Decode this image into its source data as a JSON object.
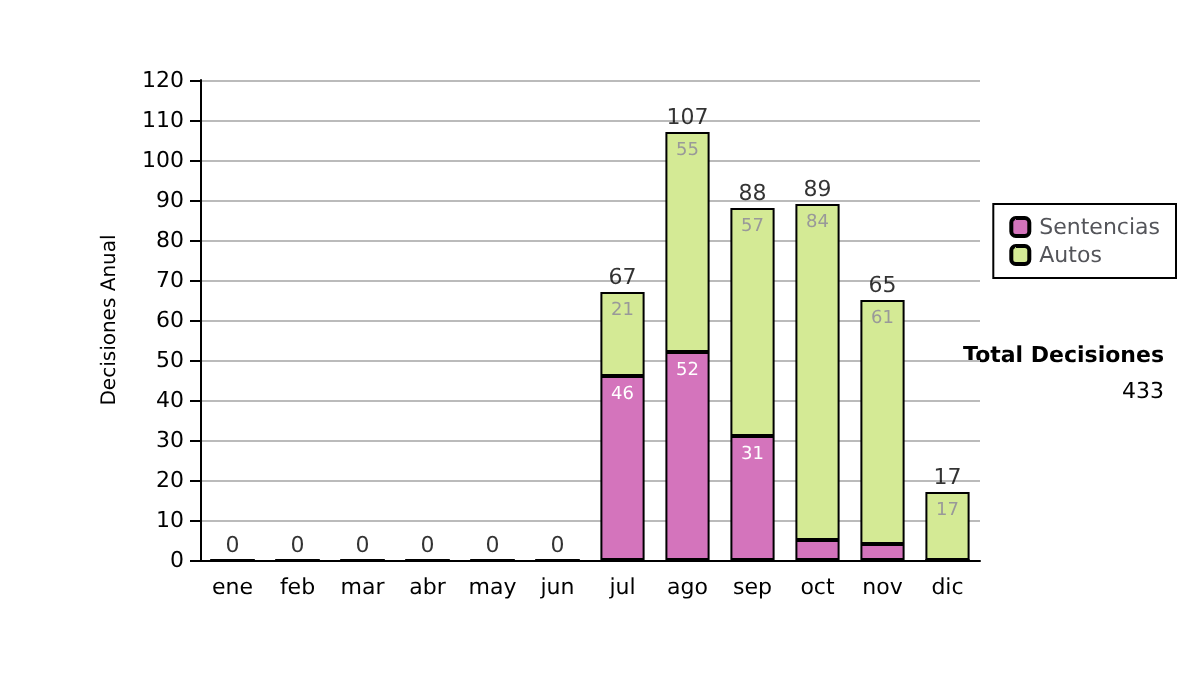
{
  "chart_data": {
    "type": "bar",
    "stacked": true,
    "ylabel": "Decisiones Anual",
    "categories": [
      "ene",
      "feb",
      "mar",
      "abr",
      "may",
      "jun",
      "jul",
      "ago",
      "sep",
      "oct",
      "nov",
      "dic"
    ],
    "series": [
      {
        "name": "Sentencias",
        "color": "#d474bc",
        "values": [
          0,
          0,
          0,
          0,
          0,
          0,
          46,
          52,
          31,
          5,
          4,
          0
        ],
        "value_labels": [
          null,
          null,
          null,
          null,
          null,
          null,
          "46",
          "52",
          "31",
          null,
          null,
          null
        ]
      },
      {
        "name": "Autos",
        "color": "#d4ea95",
        "values": [
          0,
          0,
          0,
          0,
          0,
          0,
          21,
          55,
          57,
          84,
          61,
          17
        ],
        "value_labels": [
          null,
          null,
          null,
          null,
          null,
          null,
          "21",
          "55",
          "57",
          "84",
          "61",
          "17"
        ]
      }
    ],
    "totals": [
      "0",
      "0",
      "0",
      "0",
      "0",
      "0",
      "67",
      "107",
      "88",
      "89",
      "65",
      "17"
    ],
    "ylim": [
      0,
      120
    ],
    "yticks": [
      0,
      10,
      20,
      30,
      40,
      50,
      60,
      70,
      80,
      90,
      100,
      110,
      120
    ],
    "grid": "y",
    "legend": "right",
    "annotations": [
      "Total Decisiones",
      "433"
    ]
  }
}
